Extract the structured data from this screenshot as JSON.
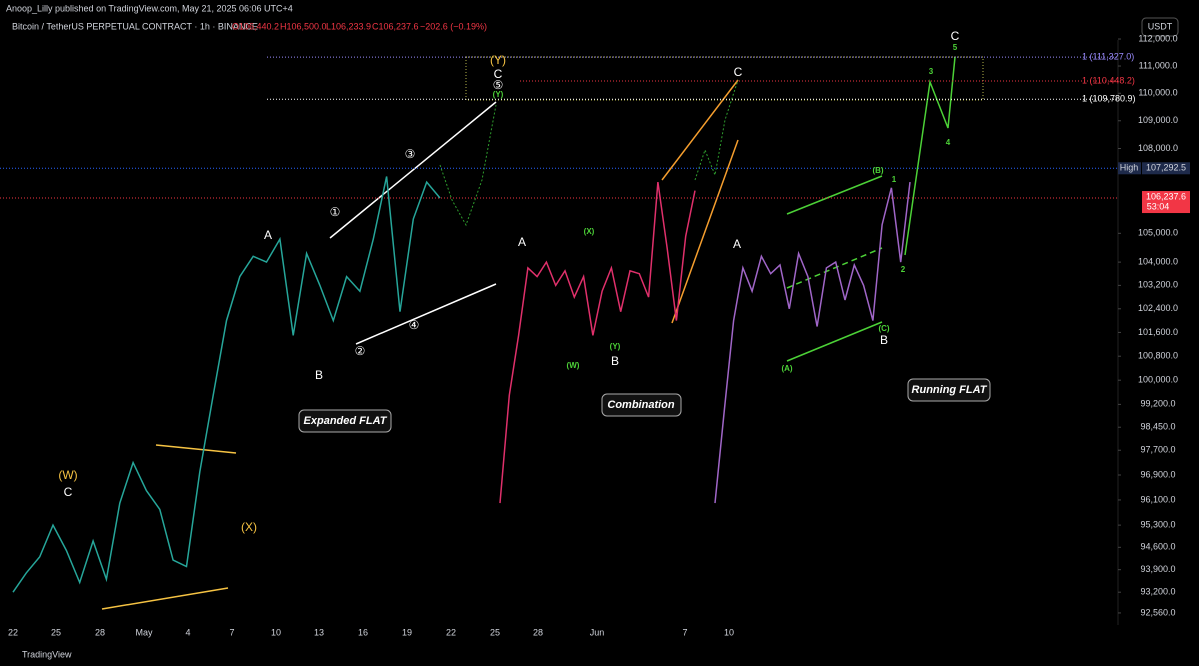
{
  "header": {
    "byline": "Anoop_Lilly published on TradingView.com, May 21, 2025 06:06 UTC+4",
    "symbol": "Bitcoin / TetherUS PERPETUAL CONTRACT · 1h · BINANCE",
    "open": "O106,440.2",
    "high": "H106,500.0",
    "low": "L106,233.9",
    "close": "C106,237.6",
    "change": "−202.6 (−0.19%)"
  },
  "currency": "USDT",
  "chart_data": {
    "type": "line",
    "log_scale": true,
    "ylim": [
      92190,
      112710
    ],
    "yticks": [
      {
        "value": 112000,
        "label": "112,000.0"
      },
      {
        "value": 111000,
        "label": "111,000.0"
      },
      {
        "value": 110000,
        "label": "110,000.0"
      },
      {
        "value": 109000,
        "label": "109,000.0"
      },
      {
        "value": 108000,
        "label": "108,000.0"
      },
      {
        "value": 105000,
        "label": "105,000.0"
      },
      {
        "value": 104000,
        "label": "104,000.0"
      },
      {
        "value": 103200,
        "label": "103,200.0"
      },
      {
        "value": 102400,
        "label": "102,400.0"
      },
      {
        "value": 101600,
        "label": "101,600.0"
      },
      {
        "value": 100800,
        "label": "100,800.0"
      },
      {
        "value": 100000,
        "label": "100,000.0"
      },
      {
        "value": 99200,
        "label": "99,200.0"
      },
      {
        "value": 98450,
        "label": "98,450.0"
      },
      {
        "value": 97700,
        "label": "97,700.0"
      },
      {
        "value": 96900,
        "label": "96,900.0"
      },
      {
        "value": 96100,
        "label": "96,100.0"
      },
      {
        "value": 95300,
        "label": "95,300.0"
      },
      {
        "value": 94600,
        "label": "94,600.0"
      },
      {
        "value": 93900,
        "label": "93,900.0"
      },
      {
        "value": 93200,
        "label": "93,200.0"
      },
      {
        "value": 92560,
        "label": "92,560.0"
      }
    ],
    "x_labels": [
      "22",
      "25",
      "28",
      "May",
      "4",
      "7",
      "10",
      "13",
      "16",
      "19",
      "22",
      "25",
      "28",
      "Jun",
      "7",
      "10"
    ],
    "levels": [
      {
        "value": 111327.0,
        "label": "1 (111,327.0)",
        "color": "#9b8cff"
      },
      {
        "value": 110448.2,
        "label": "1 (110,448.2)",
        "color": "#f23645"
      },
      {
        "value": 109780.9,
        "label": "1 (109,780.9)",
        "color": "#ffffff"
      }
    ],
    "high": {
      "name": "High",
      "value": 107292.5,
      "label": "107,292.5"
    },
    "last": {
      "value": 106237.6,
      "label": "106,237.6",
      "countdown": "53:04"
    },
    "series": [
      {
        "color": "#26a69a",
        "values": [
          93200,
          93800,
          94300,
          95300,
          94500,
          93500,
          94800,
          93600,
          96000,
          97300,
          96400,
          95800,
          94200,
          94000,
          97000,
          99500,
          102000,
          103500,
          104200,
          104000,
          104800,
          101500,
          104300,
          103200,
          102000,
          103500,
          103000,
          104800,
          107000,
          102300,
          105500,
          106800,
          106237.6
        ]
      },
      {
        "color": "#e0306b",
        "values": [
          96000,
          99500,
          101500,
          103800,
          103500,
          104000,
          103200,
          103700,
          102800,
          103500,
          101500,
          103000,
          103800,
          102300,
          103700,
          103600,
          102800,
          106800,
          104500,
          102000,
          104900,
          106500
        ]
      },
      {
        "color": "#a066c8",
        "values": [
          96000,
          99000,
          102000,
          103800,
          103000,
          104200,
          103600,
          103900,
          102400,
          104300,
          103500,
          101800,
          103800,
          104000,
          102700,
          103900,
          103200,
          102000,
          105300,
          106600,
          104000,
          106800
        ]
      }
    ],
    "annotations": {
      "w1": "(W)",
      "c1": "C",
      "x1": "(X)",
      "a1": "A",
      "b1": "B",
      "flat1": "Expanded FLAT",
      "y1": "(Y)",
      "c2": "C",
      "n1": "①",
      "n2": "②",
      "n3": "③",
      "n4": "④",
      "n5": "⑤",
      "a2": "A",
      "b2": "B",
      "c3": "C",
      "comb": "Combination",
      "gw": "(W)",
      "gx": "(X)",
      "gy": "(Y)",
      "a3": "A",
      "b3": "B",
      "c4": "C",
      "flat2": "Running FLAT",
      "ga": "(A)",
      "gb": "(B)",
      "gc": "(C)",
      "e1": "1",
      "e2": "2",
      "e3": "3",
      "e4": "4",
      "e5": "5"
    }
  },
  "footer": "TradingView"
}
